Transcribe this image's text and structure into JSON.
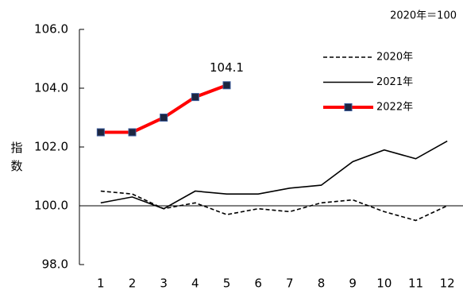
{
  "chart_data": {
    "type": "line",
    "note": "2020年＝100",
    "y_label": "指数",
    "categories": [
      "1",
      "2",
      "3",
      "4",
      "5",
      "6",
      "7",
      "8",
      "9",
      "10",
      "11",
      "12"
    ],
    "series": [
      {
        "name": "2020年",
        "color": "#000000",
        "dash": true,
        "marker": false,
        "values": [
          100.5,
          100.4,
          99.9,
          100.1,
          99.7,
          99.9,
          99.8,
          100.1,
          100.2,
          99.8,
          99.5,
          100.0
        ]
      },
      {
        "name": "2021年",
        "color": "#000000",
        "dash": false,
        "marker": false,
        "values": [
          100.1,
          100.3,
          99.9,
          100.5,
          100.4,
          100.4,
          100.6,
          100.7,
          101.5,
          101.9,
          101.6,
          102.2
        ]
      },
      {
        "name": "2022年",
        "color": "#ff0000",
        "dash": false,
        "marker": true,
        "marker_color": "#1c2640",
        "values": [
          102.5,
          102.5,
          103.0,
          103.7,
          104.1,
          null,
          null,
          null,
          null,
          null,
          null,
          null
        ],
        "value_labels": [
          null,
          null,
          null,
          null,
          "104.1",
          null,
          null,
          null,
          null,
          null,
          null,
          null
        ]
      }
    ],
    "ylim": [
      98,
      106
    ],
    "yticks": [
      {
        "value": 98,
        "label": "98.0"
      },
      {
        "value": 100,
        "label": "100.0"
      },
      {
        "value": 102,
        "label": "102.0"
      },
      {
        "value": 104,
        "label": "104.0"
      },
      {
        "value": 106,
        "label": "106.0"
      }
    ],
    "reference_line": 100,
    "grid": false,
    "legend": "upper right"
  }
}
